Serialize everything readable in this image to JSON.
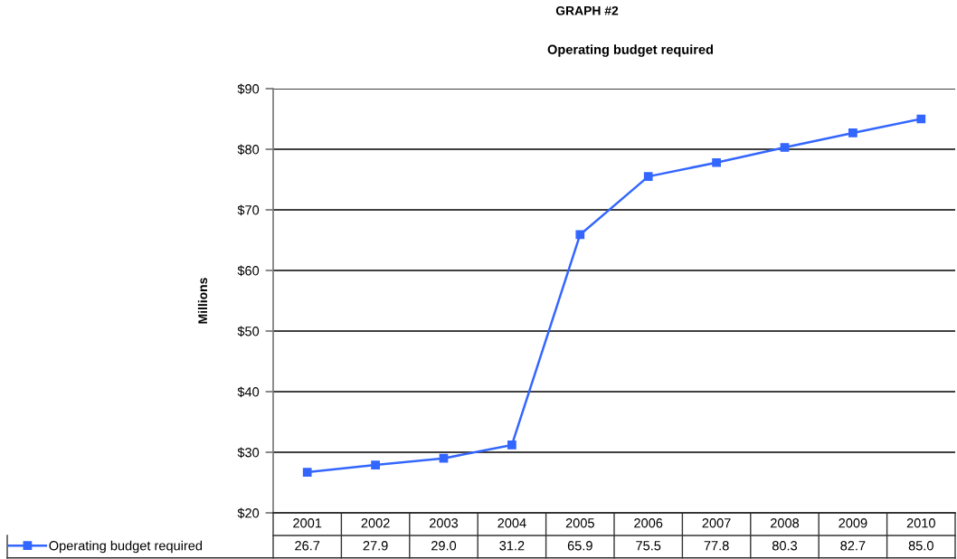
{
  "chart_data": {
    "type": "line",
    "title": "GRAPH #2",
    "subtitle": "Operating budget required",
    "ylabel": "Millions",
    "categories": [
      "2001",
      "2002",
      "2003",
      "2004",
      "2005",
      "2006",
      "2007",
      "2008",
      "2009",
      "2010"
    ],
    "series": [
      {
        "name": "Operating budget required",
        "color": "#3366ff",
        "values": [
          26.7,
          27.9,
          29.0,
          31.2,
          65.9,
          75.5,
          77.8,
          80.3,
          82.7,
          85.0
        ],
        "value_labels": [
          "26.7",
          "27.9",
          "29.0",
          "31.2",
          "65.9",
          "75.5",
          "77.8",
          "80.3",
          "82.7",
          "85.0"
        ]
      }
    ],
    "ylim": [
      20,
      90
    ],
    "yticks": [
      {
        "value": 20,
        "label": "$20"
      },
      {
        "value": 30,
        "label": "$30"
      },
      {
        "value": 40,
        "label": "$40"
      },
      {
        "value": 50,
        "label": "$50"
      },
      {
        "value": 60,
        "label": "$60"
      },
      {
        "value": 70,
        "label": "$70"
      },
      {
        "value": 80,
        "label": "$80"
      },
      {
        "value": 90,
        "label": "$90"
      }
    ],
    "grid": "y",
    "legend": "bottom left",
    "marker": "square",
    "line_style": "solid"
  }
}
